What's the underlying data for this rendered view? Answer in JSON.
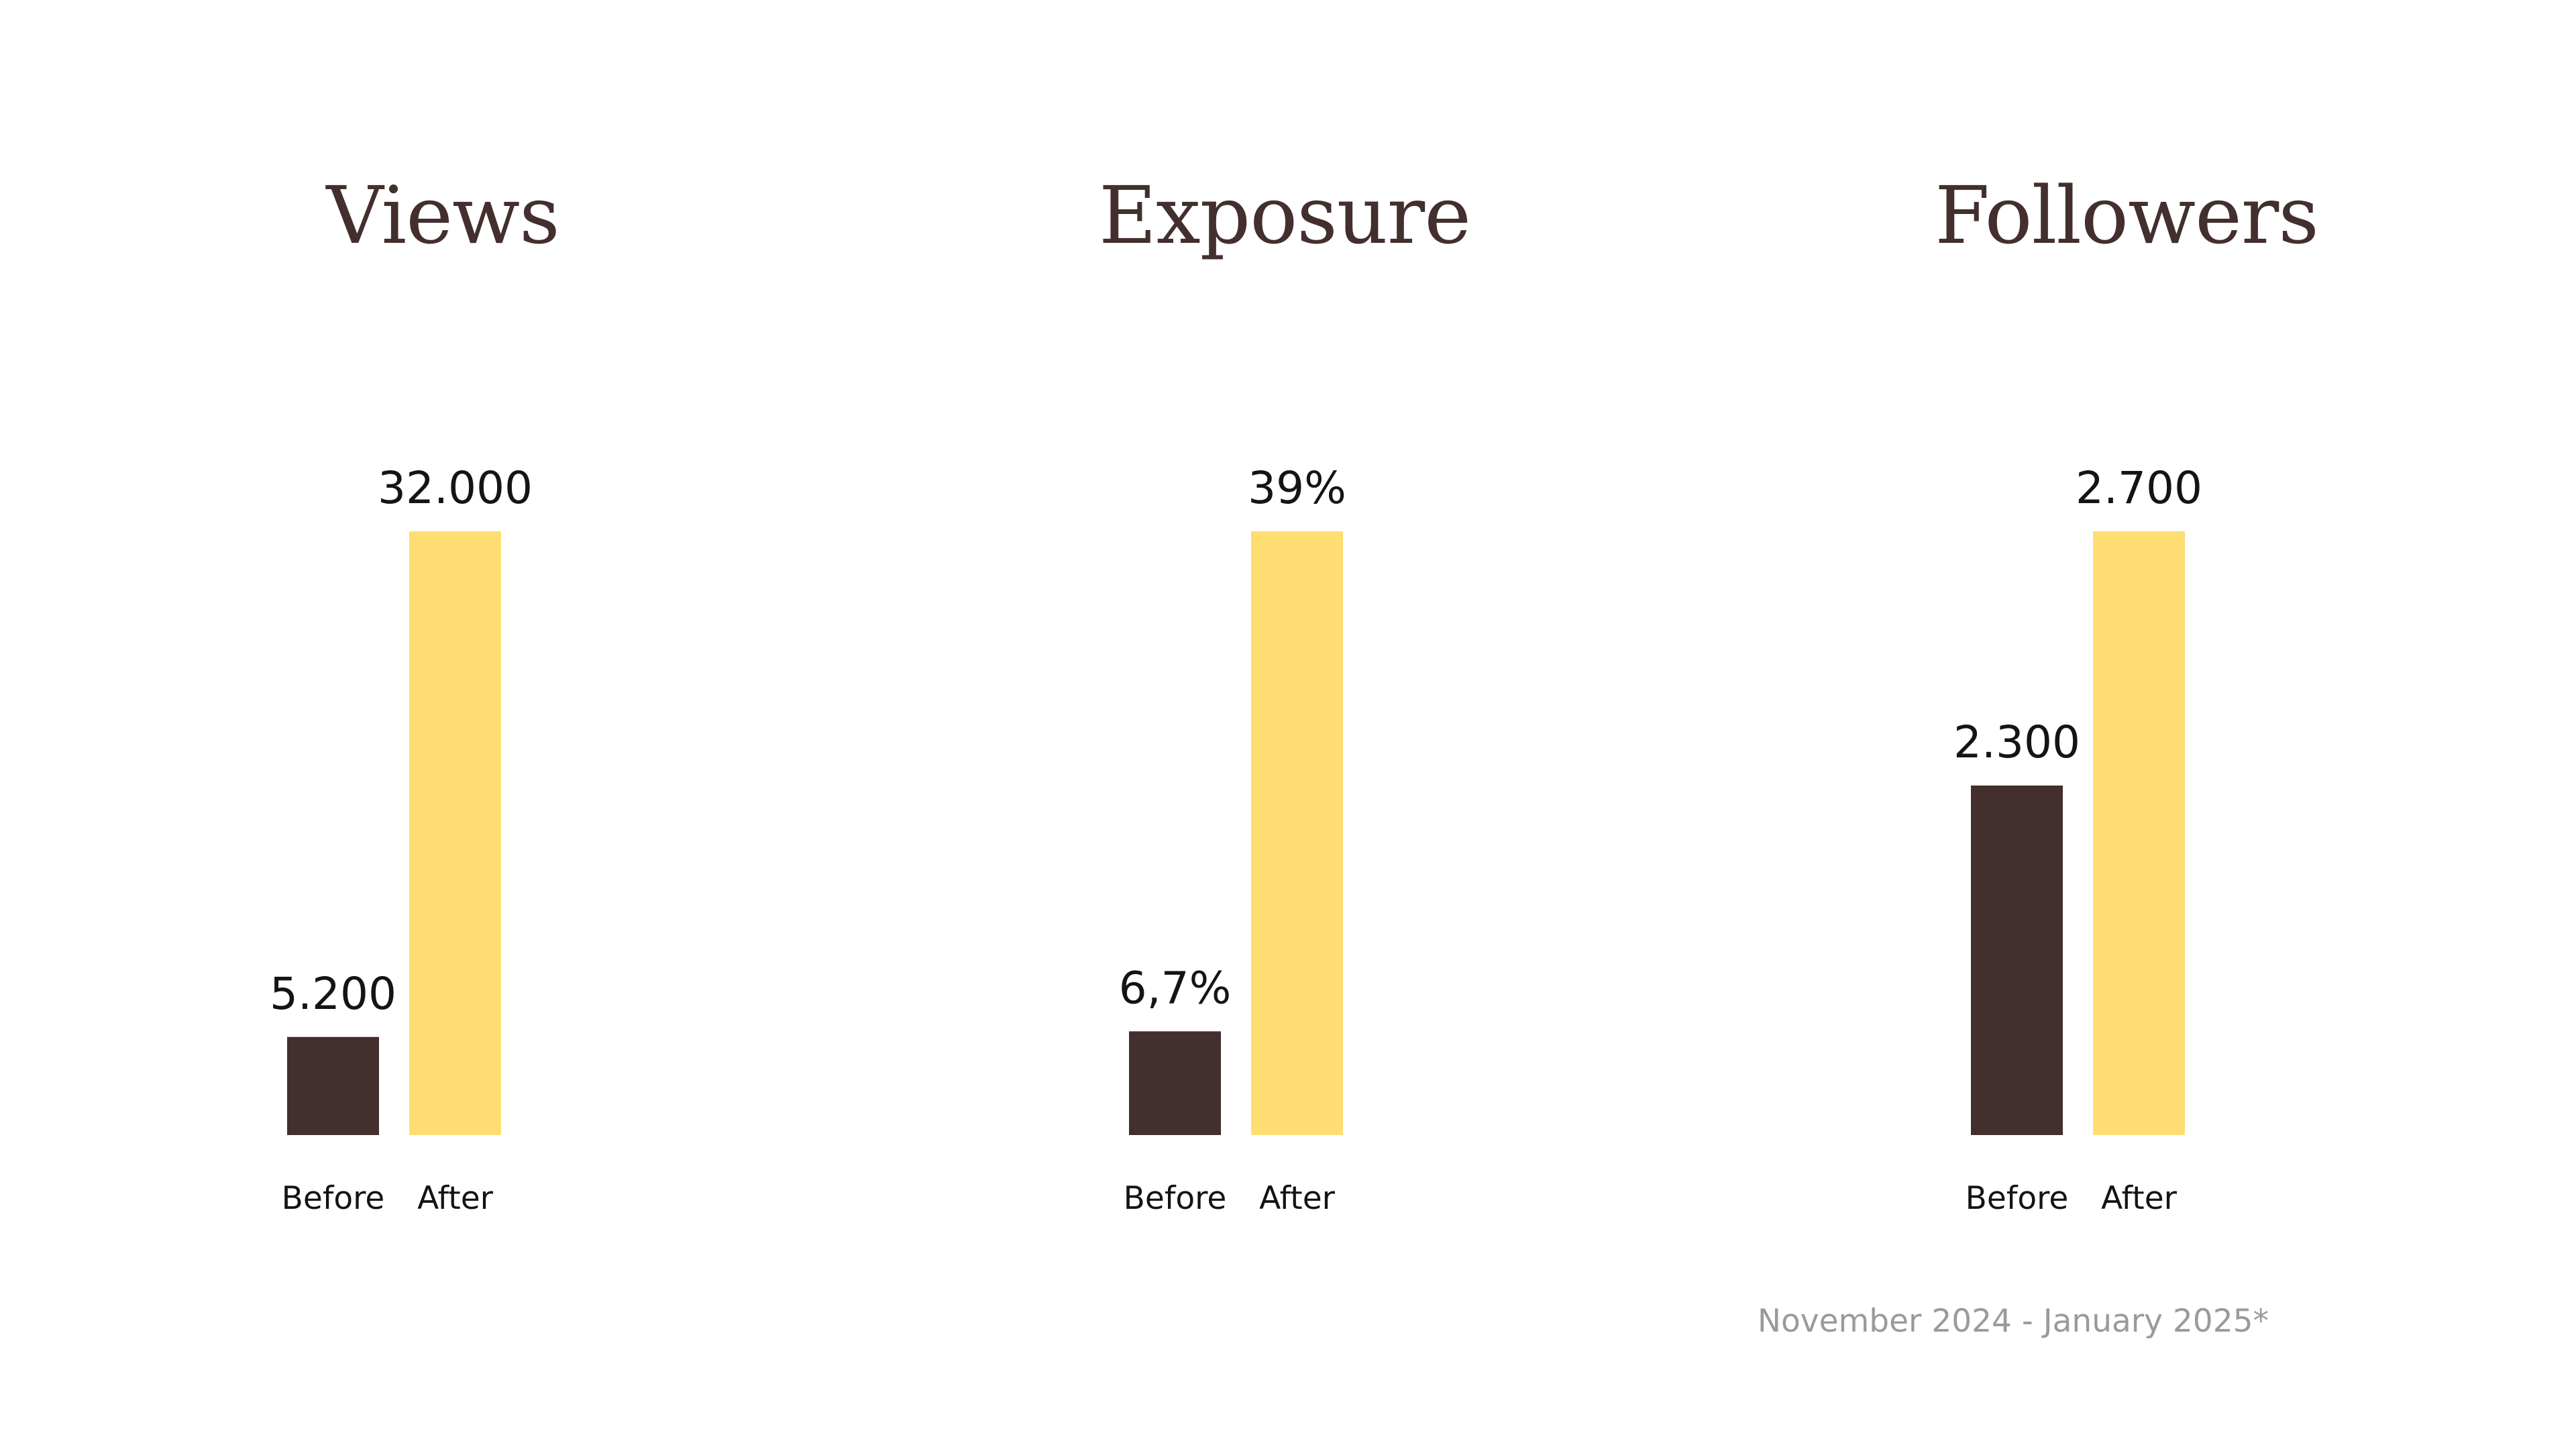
{
  "colors": {
    "before": "#432f2d",
    "after": "#ffdd73",
    "title": "#432f2d",
    "label": "#141414",
    "footnote": "#9a9a9a",
    "background": "#ffffff"
  },
  "footnote": "November 2024 - January 2025*",
  "chart_data": [
    {
      "type": "bar",
      "title": "Views",
      "categories": [
        "Before",
        "After"
      ],
      "values": [
        5200,
        32000
      ],
      "value_labels": [
        "5.200",
        "32.000"
      ],
      "ylim": [
        0,
        32000
      ],
      "grid": false,
      "legend": "none"
    },
    {
      "type": "bar",
      "title": "Exposure",
      "categories": [
        "Before",
        "After"
      ],
      "values": [
        6.7,
        39
      ],
      "value_labels": [
        "6,7%",
        "39%"
      ],
      "ylim": [
        0,
        39
      ],
      "grid": false,
      "legend": "none"
    },
    {
      "type": "bar",
      "title": "Followers",
      "categories": [
        "Before",
        "After"
      ],
      "values": [
        2300,
        2700
      ],
      "value_labels": [
        "2.300",
        "2.700"
      ],
      "ylim": [
        1750,
        2700
      ],
      "grid": false,
      "legend": "none"
    }
  ]
}
